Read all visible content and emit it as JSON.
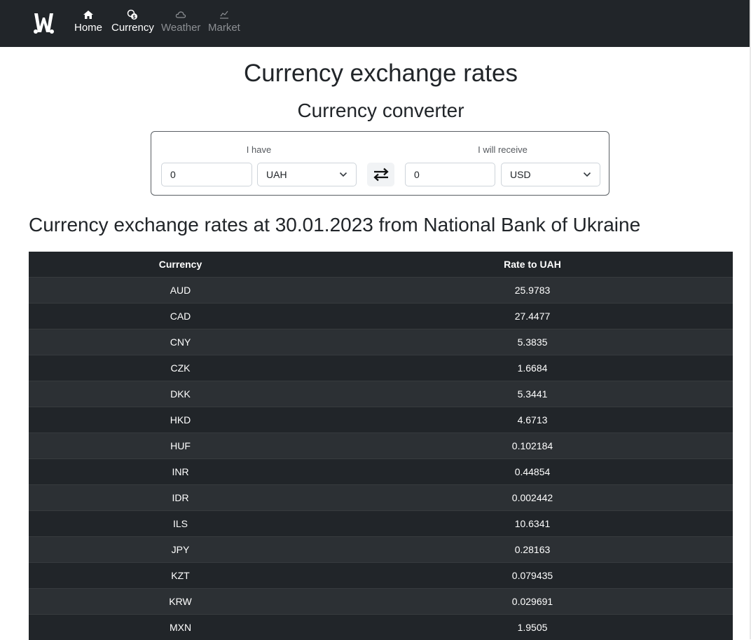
{
  "nav": {
    "brand_logo": "w-logo-icon",
    "items": [
      {
        "label": "Home",
        "icon": "home-icon",
        "active": true
      },
      {
        "label": "Currency",
        "icon": "coins-icon",
        "active": true
      },
      {
        "label": "Weather",
        "icon": "cloud-icon",
        "active": false
      },
      {
        "label": "Market",
        "icon": "chart-line-icon",
        "active": false
      }
    ]
  },
  "page": {
    "title": "Currency exchange rates",
    "converter_title": "Currency converter",
    "rates_title": "Currency exchange rates at 30.01.2023 from National Bank of Ukraine"
  },
  "converter": {
    "have_label": "I have",
    "have_value": "0",
    "have_currency": "UAH",
    "receive_label": "I will receive",
    "receive_value": "0",
    "receive_currency": "USD",
    "swap_icon": "swap-arrows-icon"
  },
  "table": {
    "headers": [
      "Currency",
      "Rate to UAH"
    ],
    "rows": [
      [
        "AUD",
        "25.9783"
      ],
      [
        "CAD",
        "27.4477"
      ],
      [
        "CNY",
        "5.3835"
      ],
      [
        "CZK",
        "1.6684"
      ],
      [
        "DKK",
        "5.3441"
      ],
      [
        "HKD",
        "4.6713"
      ],
      [
        "HUF",
        "0.102184"
      ],
      [
        "INR",
        "0.44854"
      ],
      [
        "IDR",
        "0.002442"
      ],
      [
        "ILS",
        "10.6341"
      ],
      [
        "JPY",
        "0.28163"
      ],
      [
        "KZT",
        "0.079435"
      ],
      [
        "KRW",
        "0.029691"
      ],
      [
        "MXN",
        "1.9505"
      ]
    ]
  },
  "colors": {
    "navbar": "#212529",
    "table_dark": "#212529",
    "table_stripe": "#2c3034",
    "text_light": "#ffffff"
  }
}
